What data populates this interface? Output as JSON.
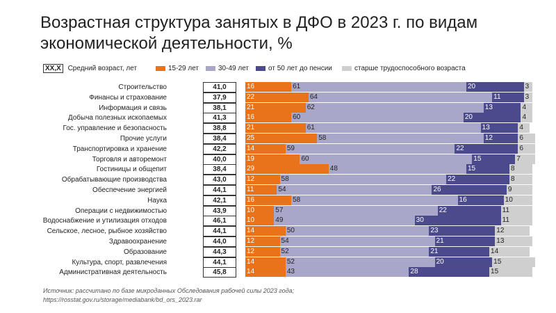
{
  "title_line1": "Возрастная структура занятых в ДФО в 2023 г. по видам",
  "title_line2": "экономической деятельности, %",
  "legend": {
    "avg_box": "XX,X",
    "avg_label": "Средний возраст, лет",
    "items": [
      {
        "label": "15-29 лет",
        "color": "#e8731a"
      },
      {
        "label": "30-49 лет",
        "color": "#a9a7c9"
      },
      {
        "label": "от 50 лет до пенсии",
        "color": "#4a4a8c"
      },
      {
        "label": "старше трудоспособного возраста",
        "color": "#cfcfcf"
      }
    ]
  },
  "chart_data": {
    "type": "bar",
    "stacked": true,
    "orientation": "horizontal",
    "categories": [
      "Строительство",
      "Финансы и страхование",
      "Информация и связь",
      "Добыча полезных ископаемых",
      "Гос. управление и безопасность",
      "Прочие услуги",
      "Транспортировка и хранение",
      "Торговля и авторемонт",
      "Гостиницы и общепит",
      "Обрабатывающие производства",
      "Обеспечение энергией",
      "Наука",
      "Операции с недвижимостью",
      "Водоснабжение и утилизация отходов",
      "Сельское, лесное, рыбное хозяйство",
      "Здравоохранение",
      "Образование",
      "Культура, спорт, развлечения",
      "Административная деятельность"
    ],
    "avg_age": [
      "41,0",
      "37,9",
      "38,1",
      "41,3",
      "38,8",
      "38,4",
      "42,2",
      "40,0",
      "38,4",
      "43,0",
      "44,1",
      "42,1",
      "43,9",
      "46,1",
      "44,1",
      "44,0",
      "44,3",
      "44,1",
      "45,8"
    ],
    "series": [
      {
        "name": "15-29 лет",
        "color": "#e8731a",
        "values": [
          16,
          22,
          21,
          16,
          21,
          25,
          14,
          19,
          29,
          12,
          11,
          16,
          10,
          10,
          14,
          12,
          12,
          14,
          14
        ]
      },
      {
        "name": "30-49 лет",
        "color": "#a9a7c9",
        "values": [
          61,
          64,
          62,
          60,
          61,
          58,
          59,
          60,
          48,
          58,
          54,
          58,
          57,
          49,
          50,
          54,
          52,
          52,
          43
        ]
      },
      {
        "name": "от 50 лет до пенсии",
        "color": "#4a4a8c",
        "values": [
          20,
          11,
          13,
          20,
          13,
          12,
          22,
          15,
          15,
          22,
          26,
          16,
          22,
          30,
          23,
          21,
          21,
          20,
          28
        ]
      },
      {
        "name": "старше трудоспособного возраста",
        "color": "#cfcfcf",
        "values": [
          3,
          3,
          4,
          4,
          4,
          6,
          6,
          7,
          8,
          8,
          9,
          10,
          11,
          11,
          12,
          13,
          14,
          15,
          15
        ]
      }
    ],
    "xlim": [
      0,
      100
    ]
  },
  "source_line1": "Источник: рассчитано по базе микроданных Обследования рабочей силы 2023 года;",
  "source_line2": "https://rosstat.gov.ru/storage/mediabank/bd_ors_2023.rar"
}
